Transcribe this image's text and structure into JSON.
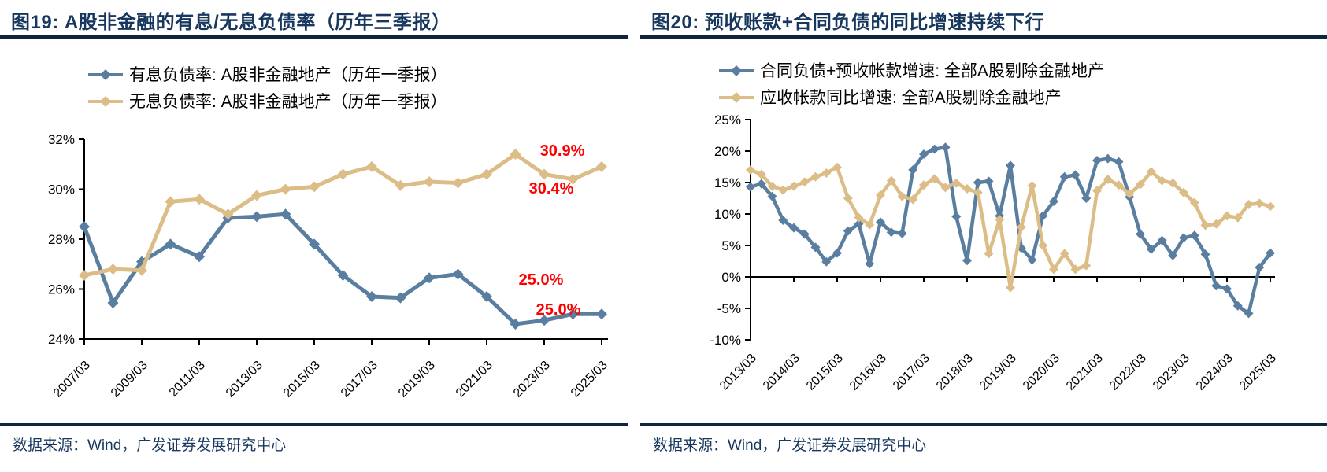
{
  "colors": {
    "series_blue": "#5a7ea0",
    "series_tan": "#dcbd87",
    "title_navy": "#17375e",
    "annotation_red": "#ff0000",
    "axis_black": "#000000"
  },
  "panels": [
    {
      "title": "图19:  A股非金融的有息/无息负债率（历年三季报）",
      "source": "数据来源：Wind，广发证券发展研究中心"
    },
    {
      "title": "图20:  预收账款+合同负债的同比增速持续下行",
      "source": "数据来源：Wind，广发证券发展研究中心"
    }
  ],
  "chart_data": [
    {
      "type": "line",
      "title": "A股非金融的有息/无息负债率（历年三季报）",
      "ylim": [
        24,
        32
      ],
      "grid": false,
      "legend_position": "top",
      "ytick_labels": [
        "32%",
        "30%",
        "28%",
        "26%",
        "24%"
      ],
      "ytick_values": [
        32,
        30,
        28,
        26,
        24
      ],
      "x_labels_shown": [
        "2007/03",
        "2009/03",
        "2011/03",
        "2013/03",
        "2015/03",
        "2017/03",
        "2019/03",
        "2021/03",
        "2023/03",
        "2025/03"
      ],
      "points_per_label": 2,
      "categories": [
        "2007/03",
        "2008/03",
        "2009/03",
        "2010/03",
        "2011/03",
        "2012/03",
        "2013/03",
        "2014/03",
        "2015/03",
        "2016/03",
        "2017/03",
        "2018/03",
        "2019/03",
        "2020/03",
        "2021/03",
        "2022/03",
        "2023/03",
        "2024/03",
        "2025/03"
      ],
      "series": [
        {
          "name": "有息负债率: A股非金融地产（历年一季报）",
          "color": "#5a7ea0",
          "values": [
            28.5,
            25.45,
            27.1,
            27.8,
            27.3,
            28.85,
            28.9,
            29.0,
            27.8,
            26.55,
            25.7,
            25.65,
            26.45,
            26.6,
            25.7,
            24.6,
            24.75,
            25.0,
            25.0
          ]
        },
        {
          "name": "无息负债率: A股非金融地产（历年一季报）",
          "color": "#dcbd87",
          "values": [
            26.55,
            26.8,
            26.75,
            29.5,
            29.6,
            29.0,
            29.75,
            30.0,
            30.1,
            30.6,
            30.9,
            30.15,
            30.3,
            30.25,
            30.6,
            31.4,
            30.6,
            30.4,
            30.9
          ]
        }
      ],
      "annotations": [
        {
          "text": "30.9%",
          "series": "无息负债率",
          "point": "2025/03"
        },
        {
          "text": "30.4%",
          "series": "无息负债率",
          "point": "2024/03"
        },
        {
          "text": "25.0%",
          "series": "有息负债率",
          "point": "2024/03"
        },
        {
          "text": "25.0%",
          "series": "有息负债率",
          "point": "2025/03"
        }
      ]
    },
    {
      "type": "line",
      "title": "预收账款+合同负债的同比增速持续下行",
      "ylim": [
        -10,
        25
      ],
      "grid": false,
      "legend_position": "top",
      "ytick_labels": [
        "25%",
        "20%",
        "15%",
        "10%",
        "5%",
        "0%",
        "-5%",
        "-10%"
      ],
      "ytick_values": [
        25,
        20,
        15,
        10,
        5,
        0,
        -5,
        -10
      ],
      "x_labels_shown": [
        "2013/03",
        "2014/03",
        "2015/03",
        "2016/03",
        "2017/03",
        "2018/03",
        "2019/03",
        "2020/03",
        "2021/03",
        "2022/03",
        "2023/03",
        "2024/03",
        "2025/03"
      ],
      "points_per_label": 4,
      "categories": [
        "2013/03",
        "2013/06",
        "2013/09",
        "2013/12",
        "2014/03",
        "2014/06",
        "2014/09",
        "2014/12",
        "2015/03",
        "2015/06",
        "2015/09",
        "2015/12",
        "2016/03",
        "2016/06",
        "2016/09",
        "2016/12",
        "2017/03",
        "2017/06",
        "2017/09",
        "2017/12",
        "2018/03",
        "2018/06",
        "2018/09",
        "2018/12",
        "2019/03",
        "2019/06",
        "2019/09",
        "2019/12",
        "2020/03",
        "2020/06",
        "2020/09",
        "2020/12",
        "2021/03",
        "2021/06",
        "2021/09",
        "2021/12",
        "2022/03",
        "2022/06",
        "2022/09",
        "2022/12",
        "2023/03",
        "2023/06",
        "2023/09",
        "2023/12",
        "2024/03",
        "2024/06",
        "2024/09",
        "2024/12",
        "2025/03"
      ],
      "series": [
        {
          "name": "合同负债+预收帐款增速: 全部A股剔除金融地产",
          "color": "#5a7ea0",
          "values": [
            14.3,
            14.8,
            12.8,
            9.0,
            7.8,
            6.8,
            4.7,
            2.4,
            3.8,
            7.3,
            8.4,
            2.1,
            8.7,
            7.1,
            6.9,
            17.0,
            19.5,
            20.3,
            20.6,
            9.6,
            2.6,
            15.0,
            15.2,
            9.7,
            17.7,
            4.6,
            2.7,
            9.7,
            12.0,
            15.9,
            16.2,
            12.5,
            18.5,
            18.8,
            18.3,
            12.7,
            6.8,
            4.4,
            5.8,
            3.4,
            6.2,
            6.6,
            3.6,
            -1.4,
            -1.9,
            -4.6,
            -5.8,
            1.5,
            3.8
          ]
        },
        {
          "name": "应收帐款同比增速: 全部A股剔除金融地产",
          "color": "#dcbd87",
          "values": [
            17.0,
            16.3,
            14.4,
            13.8,
            14.4,
            15.1,
            15.9,
            16.5,
            17.4,
            12.5,
            9.4,
            8.3,
            13.0,
            15.3,
            12.8,
            12.3,
            14.6,
            15.6,
            14.2,
            14.9,
            14.0,
            13.4,
            3.7,
            9.1,
            -1.7,
            7.9,
            14.5,
            5.0,
            1.2,
            3.7,
            1.2,
            1.8,
            13.7,
            15.5,
            14.6,
            13.2,
            14.7,
            16.7,
            15.3,
            14.9,
            13.4,
            11.8,
            8.2,
            8.4,
            9.7,
            9.4,
            11.5,
            11.7,
            11.2
          ]
        }
      ],
      "annotations": []
    }
  ]
}
